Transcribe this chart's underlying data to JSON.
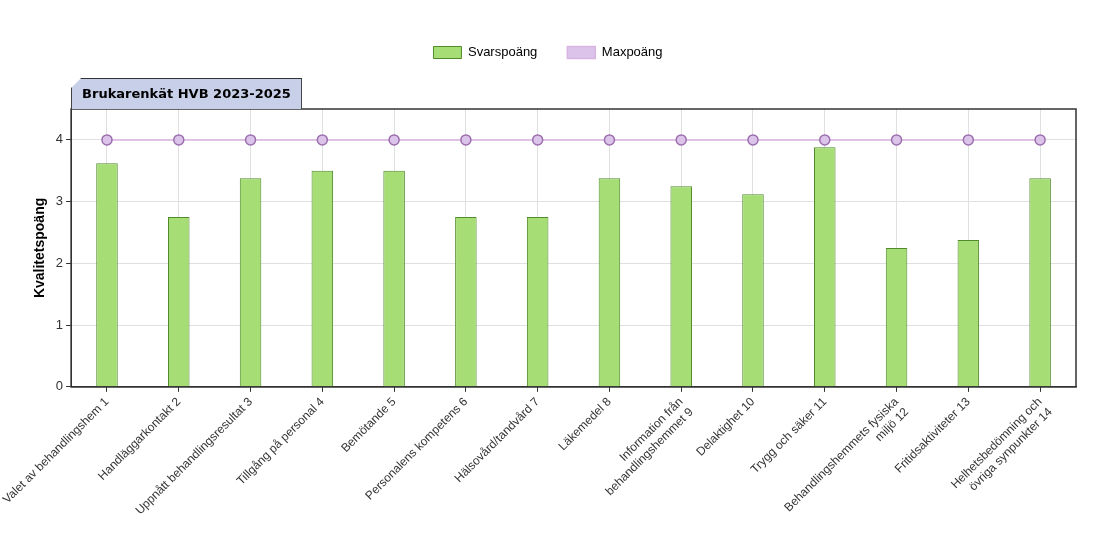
{
  "chart_data": {
    "type": "bar",
    "title": "Brukarenkät HVB 2023-2025",
    "ylabel": "Kvalitetspoäng",
    "categories": [
      "Valet av behandlingshem 1",
      "Handläggarkontakt 2",
      "Uppnått behandlingsresultat 3",
      "Tillgång på personal 4",
      "Bemötande 5",
      "Personalens kompetens 6",
      "Hälsovård/tandvård 7",
      "Läkemedel 8",
      "Information från\nbehandlingshemmet 9",
      "Delaktighet 10",
      "Trygg och säker 11",
      "Behandlingshemmets fysiska\nmiljö 12",
      "Fritidsaktiviteter 13",
      "Helhetsbedömning och\növriga synpunkter 14"
    ],
    "series": [
      {
        "name": "Svarspoäng",
        "color": "#a6dd75",
        "values": [
          3.62,
          2.75,
          3.38,
          3.5,
          3.5,
          2.75,
          2.75,
          3.38,
          3.25,
          3.12,
          3.88,
          2.25,
          2.38,
          3.38
        ]
      },
      {
        "name": "Maxpoäng",
        "type": "line",
        "color": "#d8b4e2",
        "marker": "circle",
        "values": [
          4,
          4,
          4,
          4,
          4,
          4,
          4,
          4,
          4,
          4,
          4,
          4,
          4,
          4
        ]
      }
    ],
    "ylim": [
      0,
      4.5
    ],
    "yticks": [
      0,
      1,
      2,
      3,
      4
    ],
    "grid": true,
    "legend": "top"
  }
}
